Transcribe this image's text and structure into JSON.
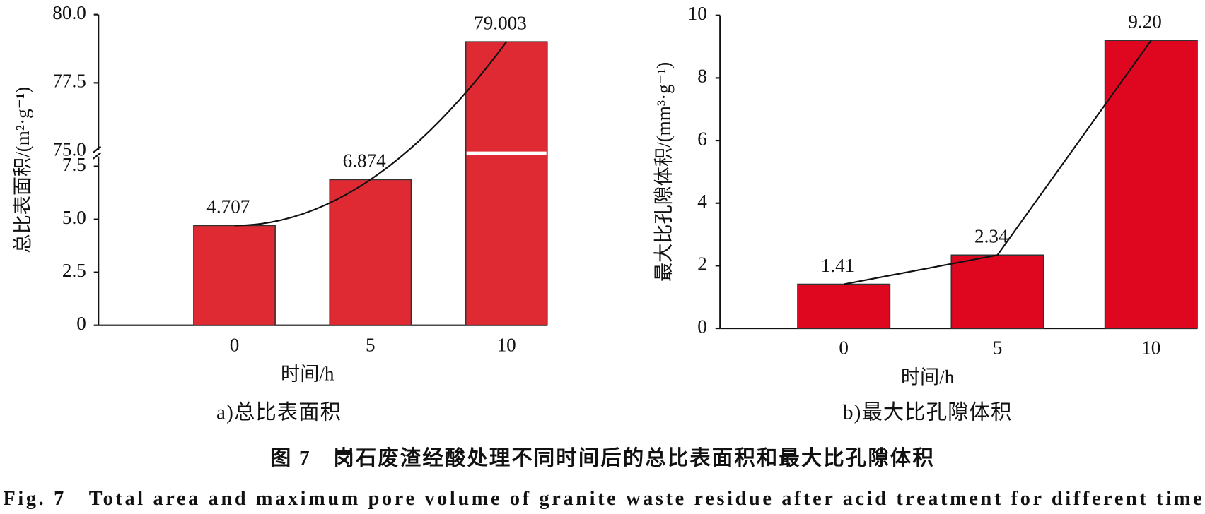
{
  "chart_data": [
    {
      "type": "bar",
      "subtitle": "a)总比表面积",
      "xlabel": "时间/h",
      "ylabel": "总比表面积/(m²·g⁻¹)",
      "categories": [
        "0",
        "5",
        "10"
      ],
      "values": [
        4.707,
        6.874,
        79.003
      ],
      "color": "#e02a33",
      "ylim": [
        0,
        80
      ],
      "ybreak": [
        8,
        75
      ],
      "yticks": [
        0,
        {
          "value": 2.5,
          "label": "2.5"
        },
        {
          "value": 5,
          "label": "5.0"
        },
        {
          "value": 7.5,
          "label": "7.5"
        },
        {
          "value": 75,
          "label": "75.0"
        },
        {
          "value": 77.5,
          "label": "77.5"
        },
        {
          "value": 80,
          "label": "80.0"
        }
      ],
      "trend": "curve",
      "grid": false
    },
    {
      "type": "bar",
      "subtitle": "b)最大比孔隙体积",
      "xlabel": "时间/h",
      "ylabel": "最大比孔隙体积/(mm³·g⁻¹)",
      "categories": [
        "0",
        "5",
        "10"
      ],
      "values": [
        1.41,
        2.34,
        9.2
      ],
      "value_labels": [
        "1.41",
        "2.34",
        "9.20"
      ],
      "color": "#df0620",
      "ylim": [
        0,
        10
      ],
      "yticks": [
        0,
        2,
        4,
        6,
        8,
        10
      ],
      "trend": "polyline",
      "grid": false
    }
  ],
  "caption": {
    "cn": "图 7　岗石废渣经酸处理不同时间后的总比表面积和最大比孔隙体积",
    "en": "Fig. 7　Total area and maximum pore volume of granite waste residue after acid treatment for different time"
  }
}
